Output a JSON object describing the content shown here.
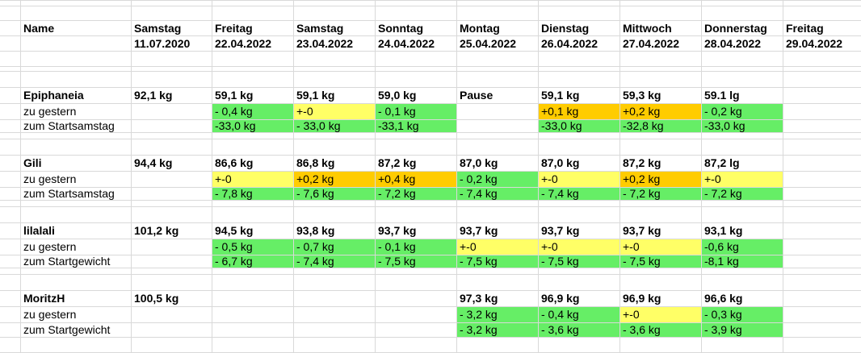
{
  "colors": {
    "green": "#66ee66",
    "yellow": "#ffff66",
    "orange": "#ffcc00",
    "grid": "#d9d9d9"
  },
  "header": {
    "name_label": "Name",
    "days": [
      {
        "weekday": "Samstag",
        "date": "11.07.2020"
      },
      {
        "weekday": "Freitag",
        "date": "22.04.2022"
      },
      {
        "weekday": "Samstag",
        "date": "23.04.2022"
      },
      {
        "weekday": "Sonntag",
        "date": "24.04.2022"
      },
      {
        "weekday": "Montag",
        "date": "25.04.2022"
      },
      {
        "weekday": "Dienstag",
        "date": "26.04.2022"
      },
      {
        "weekday": "Mittwoch",
        "date": "27.04.2022"
      },
      {
        "weekday": "Donnerstag",
        "date": "28.04.2022"
      },
      {
        "weekday": "Freitag",
        "date": "29.04.2022"
      }
    ]
  },
  "people": [
    {
      "name": "Epiphaneia",
      "weights": [
        "92,1 kg",
        "59,1 kg",
        "59,1 kg",
        "59,0 kg",
        "Pause",
        "59,1 kg",
        "59,3 kg",
        "59.1 lg",
        ""
      ],
      "rows": [
        {
          "label": "zu gestern",
          "cells": [
            {
              "v": "",
              "c": ""
            },
            {
              "v": "- 0,4 kg",
              "c": "g"
            },
            {
              "v": "+-0",
              "c": "y"
            },
            {
              "v": "- 0,1 kg",
              "c": "g"
            },
            {
              "v": "",
              "c": ""
            },
            {
              "v": "+0,1 kg",
              "c": "o"
            },
            {
              "v": "+0,2 kg",
              "c": "o"
            },
            {
              "v": "- 0,2 kg",
              "c": "g"
            },
            {
              "v": "",
              "c": ""
            }
          ]
        },
        {
          "label": "zum Startsamstag",
          "cells": [
            {
              "v": "",
              "c": ""
            },
            {
              "v": "-33,0 kg",
              "c": "g"
            },
            {
              "v": "- 33,0 kg",
              "c": "g"
            },
            {
              "v": "-33,1 kg",
              "c": "g"
            },
            {
              "v": "",
              "c": ""
            },
            {
              "v": "-33,0 kg",
              "c": "g"
            },
            {
              "v": "-32,8 kg",
              "c": "g"
            },
            {
              "v": "-33,0 kg",
              "c": "g"
            },
            {
              "v": "",
              "c": ""
            }
          ]
        }
      ]
    },
    {
      "name": "Gili",
      "weights": [
        "94,4 kg",
        "86,6 kg",
        "86,8 kg",
        "87,2 kg",
        "87,0 kg",
        "87,0 kg",
        "87,2 kg",
        "87,2 lg",
        ""
      ],
      "rows": [
        {
          "label": "zu gestern",
          "cells": [
            {
              "v": "",
              "c": ""
            },
            {
              "v": "+-0",
              "c": "y"
            },
            {
              "v": "+0,2 kg",
              "c": "o"
            },
            {
              "v": "+0,4 kg",
              "c": "o"
            },
            {
              "v": "- 0,2 kg",
              "c": "g"
            },
            {
              "v": "+-0",
              "c": "y"
            },
            {
              "v": "+0,2 kg",
              "c": "o"
            },
            {
              "v": "+-0",
              "c": "y"
            },
            {
              "v": "",
              "c": ""
            }
          ]
        },
        {
          "label": "zum Startsamstag",
          "cells": [
            {
              "v": "",
              "c": ""
            },
            {
              "v": "- 7,8 kg",
              "c": "g"
            },
            {
              "v": "- 7,6 kg",
              "c": "g"
            },
            {
              "v": "- 7,2 kg",
              "c": "g"
            },
            {
              "v": "- 7,4 kg",
              "c": "g"
            },
            {
              "v": "- 7,4 kg",
              "c": "g"
            },
            {
              "v": "- 7,2 kg",
              "c": "g"
            },
            {
              "v": "- 7,2 kg",
              "c": "g"
            },
            {
              "v": "",
              "c": ""
            }
          ]
        }
      ]
    },
    {
      "name": "lilalali",
      "weights": [
        "101,2 kg",
        "94,5 kg",
        "93,8 kg",
        "93,7 kg",
        "93,7 kg",
        "93,7 kg",
        "93,7 kg",
        "93,1 kg",
        ""
      ],
      "rows": [
        {
          "label": "zu gestern",
          "cells": [
            {
              "v": "",
              "c": ""
            },
            {
              "v": "- 0,5 kg",
              "c": "g"
            },
            {
              "v": "- 0,7 kg",
              "c": "g"
            },
            {
              "v": "- 0,1 kg",
              "c": "g"
            },
            {
              "v": "+-0",
              "c": "y"
            },
            {
              "v": "+-0",
              "c": "y"
            },
            {
              "v": "+-0",
              "c": "y"
            },
            {
              "v": "-0,6 kg",
              "c": "g"
            },
            {
              "v": "",
              "c": ""
            }
          ]
        },
        {
          "label": "zum Startgewicht",
          "cells": [
            {
              "v": "",
              "c": ""
            },
            {
              "v": "- 6,7 kg",
              "c": "g"
            },
            {
              "v": "- 7,4 kg",
              "c": "g"
            },
            {
              "v": "- 7,5 kg",
              "c": "g"
            },
            {
              "v": "- 7,5 kg",
              "c": "g"
            },
            {
              "v": "- 7,5 kg",
              "c": "g"
            },
            {
              "v": "- 7,5 kg",
              "c": "g"
            },
            {
              "v": "-8,1 kg",
              "c": "g"
            },
            {
              "v": "",
              "c": ""
            }
          ]
        }
      ]
    },
    {
      "name": "MoritzH",
      "weights": [
        "100,5 kg",
        "",
        "",
        "",
        "97,3 kg",
        "96,9 kg",
        "96,9 kg",
        "96,6 kg",
        ""
      ],
      "rows": [
        {
          "label": "zu gestern",
          "cells": [
            {
              "v": "",
              "c": ""
            },
            {
              "v": "",
              "c": ""
            },
            {
              "v": "",
              "c": ""
            },
            {
              "v": "",
              "c": ""
            },
            {
              "v": "- 3,2 kg",
              "c": "g"
            },
            {
              "v": "- 0,4 kg",
              "c": "g"
            },
            {
              "v": "+-0",
              "c": "y"
            },
            {
              "v": "- 0,3 kg",
              "c": "g"
            },
            {
              "v": "",
              "c": ""
            }
          ]
        },
        {
          "label": "zum Startgewicht",
          "cells": [
            {
              "v": "",
              "c": ""
            },
            {
              "v": "",
              "c": ""
            },
            {
              "v": "",
              "c": ""
            },
            {
              "v": "",
              "c": ""
            },
            {
              "v": "- 3,2 kg",
              "c": "g"
            },
            {
              "v": "- 3,6 kg",
              "c": "g"
            },
            {
              "v": "- 3,6 kg",
              "c": "g"
            },
            {
              "v": "- 3,9 kg",
              "c": "g"
            },
            {
              "v": "",
              "c": ""
            }
          ]
        }
      ]
    }
  ]
}
